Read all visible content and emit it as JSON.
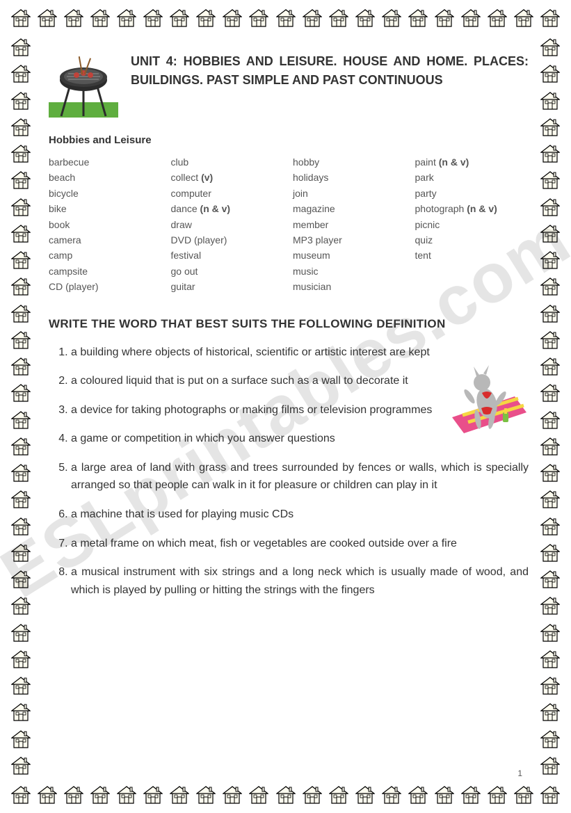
{
  "header": {
    "unit_title": "UNIT 4: HOBBIES AND LEISURE. HOUSE AND HOME. PLACES: BUILDINGS. PAST SIMPLE AND PAST CONTINUOUS",
    "section_label": "Hobbies and Leisure"
  },
  "vocab": {
    "col1": [
      "barbecue",
      "beach",
      "bicycle",
      "bike",
      "book",
      "camera",
      "camp",
      "campsite",
      "CD (player)"
    ],
    "col2": [
      {
        "w": "club",
        "n": ""
      },
      {
        "w": "collect ",
        "n": "(v)"
      },
      {
        "w": "computer",
        "n": ""
      },
      {
        "w": "dance ",
        "n": "(n & v)"
      },
      {
        "w": "draw",
        "n": ""
      },
      {
        "w": "DVD (player)",
        "n": ""
      },
      {
        "w": "festival",
        "n": ""
      },
      {
        "w": "go out",
        "n": ""
      },
      {
        "w": "guitar",
        "n": ""
      }
    ],
    "col3": [
      "hobby",
      "holidays",
      "join",
      "magazine",
      "member",
      "MP3 player",
      "museum",
      "music",
      "musician"
    ],
    "col4": [
      {
        "w": "paint ",
        "n": "(n & v)"
      },
      {
        "w": "park",
        "n": ""
      },
      {
        "w": "party",
        "n": ""
      },
      {
        "w": "photograph ",
        "n": "(n & v)"
      },
      {
        "w": "picnic",
        "n": ""
      },
      {
        "w": "quiz",
        "n": ""
      },
      {
        "w": "tent",
        "n": ""
      }
    ]
  },
  "instruction": "WRITE THE WORD THAT BEST SUITS THE FOLLOWING DEFINITION",
  "definitions": [
    "a building where objects of historical, scientific or artistic interest are kept",
    "a coloured liquid that is put on a surface such as a wall to decorate it",
    "a device for taking photographs or making films or television programmes",
    "a game or competition in which you answer questions",
    "a large area of land with grass and trees surrounded by fences or walls, which is specially arranged so that people can walk in it for pleasure or children can play in it",
    "a machine that is used for playing music CDs",
    "a metal frame on which meat, fish or vegetables are cooked outside over a fire",
    "a musical instrument with six strings and a long neck which is usually made of wood, and which is played by pulling or hitting the strings with the fingers"
  ],
  "watermark": "ESLprintables.com",
  "page_number": "1",
  "style": {
    "page_bg": "#ffffff",
    "text_color": "#333333",
    "vocab_text_color": "#555555",
    "watermark_color": "rgba(0,0,0,0.10)",
    "house_fill": "#fefcef",
    "house_stroke": "#000000",
    "grass_green": "#5fae3f",
    "bbq_black": "#2b2b2b",
    "bbq_meat": "#c0433a",
    "towel_pink": "#e94f8a",
    "towel_stripe": "#f5d742",
    "cat_grey": "#b8b8b8",
    "bikini_red": "#d82c2c",
    "border_count_top": 21,
    "border_count_side": 30
  }
}
